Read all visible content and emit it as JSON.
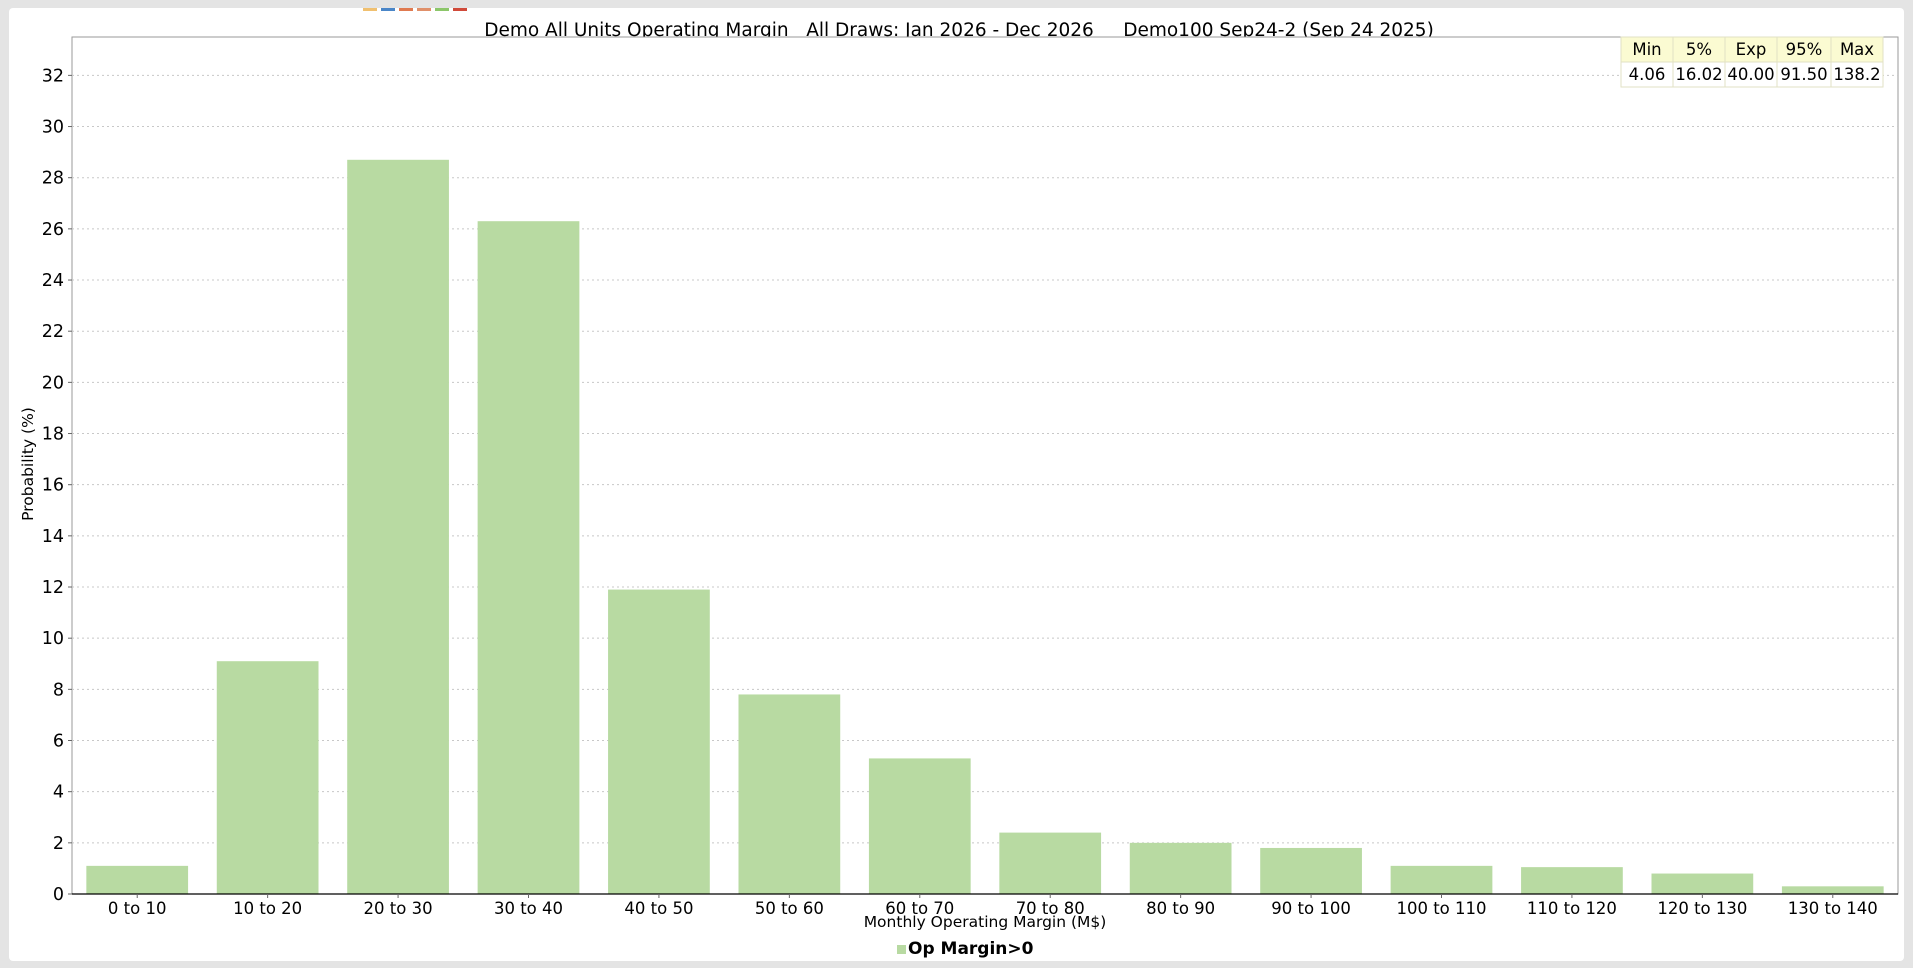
{
  "colors": {
    "bar": "#b8daa2",
    "stats_header_bg": "#fbfbd2",
    "stats_row_bg": "#ffffff"
  },
  "top_swatches": [
    "#f0c070",
    "#4a86c8",
    "#e07a50",
    "#e0906a",
    "#8cc66a",
    "#d04a3a"
  ],
  "chart_data": {
    "type": "bar",
    "title": "Demo All Units Operating Margin   All Draws: Jan 2026 - Dec 2026     Demo100 Sep24-2 (Sep 24 2025)",
    "xlabel": "Monthly Operating Margin (M$)",
    "ylabel": "Probability (%)",
    "ylim": [
      0,
      33.5
    ],
    "yticks": [
      0,
      2,
      4,
      6,
      8,
      10,
      12,
      14,
      16,
      18,
      20,
      22,
      24,
      26,
      28,
      30,
      32
    ],
    "grid": true,
    "legend_position": "bottom-center",
    "categories": [
      "0 to 10",
      "10 to 20",
      "20 to 30",
      "30 to 40",
      "40 to 50",
      "50 to 60",
      "60 to 70",
      "70 to 80",
      "80 to 90",
      "90 to 100",
      "100 to 110",
      "110 to 120",
      "120 to 130",
      "130 to 140"
    ],
    "series": [
      {
        "name": "Op Margin>0",
        "values": [
          1.1,
          9.1,
          28.7,
          26.3,
          11.9,
          7.8,
          5.3,
          2.4,
          2.0,
          1.8,
          1.1,
          1.05,
          0.8,
          0.3
        ]
      }
    ],
    "stats_table": {
      "headers": [
        "Min",
        "5%",
        "Exp",
        "95%",
        "Max"
      ],
      "values": [
        "4.06",
        "16.02",
        "40.00",
        "91.50",
        "138.2"
      ]
    }
  }
}
